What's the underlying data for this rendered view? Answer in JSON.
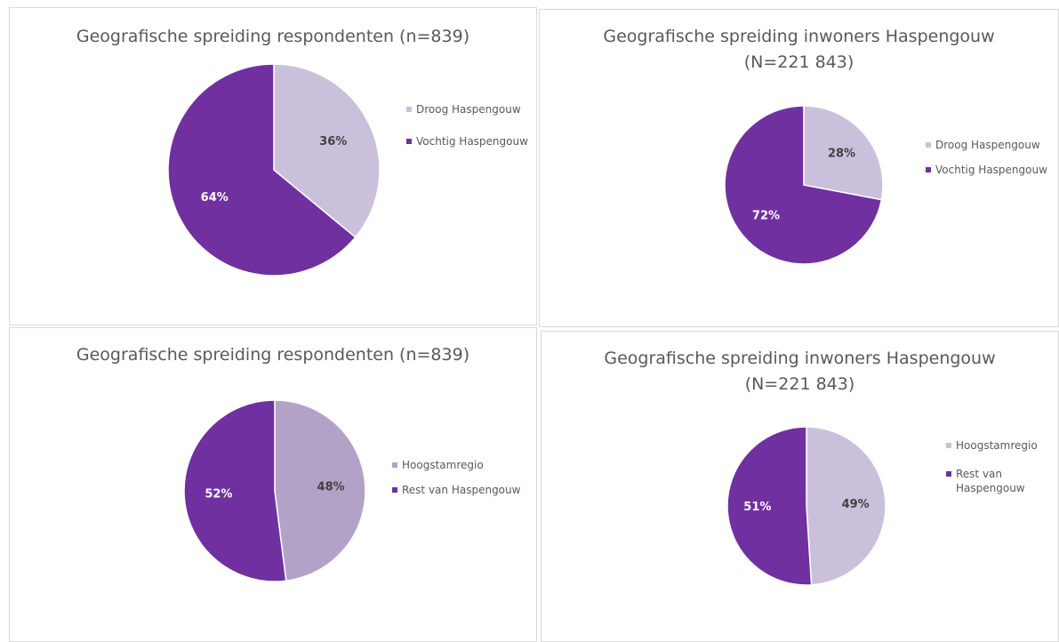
{
  "chart_data": [
    {
      "type": "pie",
      "title": "Geografische spreiding respondenten (n=839)",
      "categories": [
        "Droog Haspengouw",
        "Vochtig Haspengouw"
      ],
      "values": [
        36,
        64
      ],
      "value_labels": [
        "36%",
        "64%"
      ],
      "colors": [
        "#cbc0dc",
        "#7030a0"
      ]
    },
    {
      "type": "pie",
      "title": "Geografische spreiding inwoners Haspengouw (N=221 843)",
      "categories": [
        "Droog Haspengouw",
        "Vochtig Haspengouw"
      ],
      "values": [
        28,
        72
      ],
      "value_labels": [
        "28%",
        "72%"
      ],
      "colors": [
        "#cbc0dc",
        "#7030a0"
      ]
    },
    {
      "type": "pie",
      "title": "Geografische spreiding respondenten (n=839)",
      "categories": [
        "Hoogstamregio",
        "Rest van Haspengouw"
      ],
      "values": [
        48,
        52
      ],
      "value_labels": [
        "48%",
        "52%"
      ],
      "colors": [
        "#b3a2c8",
        "#7030a0"
      ]
    },
    {
      "type": "pie",
      "title": "Geografische spreiding inwoners Haspengouw (N=221 843)",
      "categories": [
        "Hoogstamregio",
        "Rest van Haspengouw"
      ],
      "values": [
        49,
        51
      ],
      "value_labels": [
        "49%",
        "51%"
      ],
      "colors": [
        "#cbc0dc",
        "#7030a0"
      ]
    }
  ]
}
